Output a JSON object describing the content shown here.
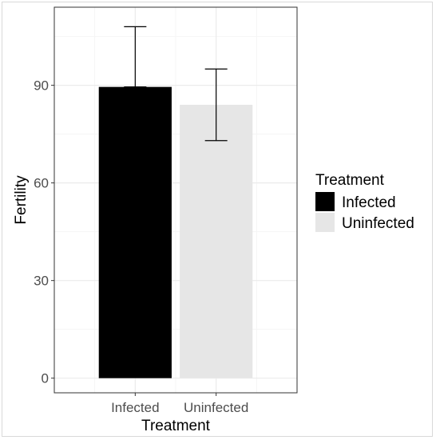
{
  "chart_data": {
    "type": "bar",
    "categories": [
      "Infected",
      "Uninfected"
    ],
    "values": [
      89.5,
      84.0
    ],
    "error_upper": [
      108.0,
      95.0
    ],
    "error_lower": [
      89.5,
      73.0
    ],
    "xlabel": "Treatment",
    "ylabel": "Fertility",
    "yticks": [
      0,
      30,
      60,
      90
    ],
    "ylim": [
      -4.5,
      114
    ],
    "grid": true,
    "legend": {
      "title": "Treatment",
      "placement": "right",
      "entries": [
        "Infected",
        "Uninfected"
      ]
    },
    "colors": {
      "Infected": "#000000",
      "Uninfected": "#e6e6e6",
      "grid_major": "#ebebeb",
      "grid_minor": "#f5f5f5",
      "panel_border": "#333333",
      "axis_text": "#4d4d4d"
    }
  }
}
